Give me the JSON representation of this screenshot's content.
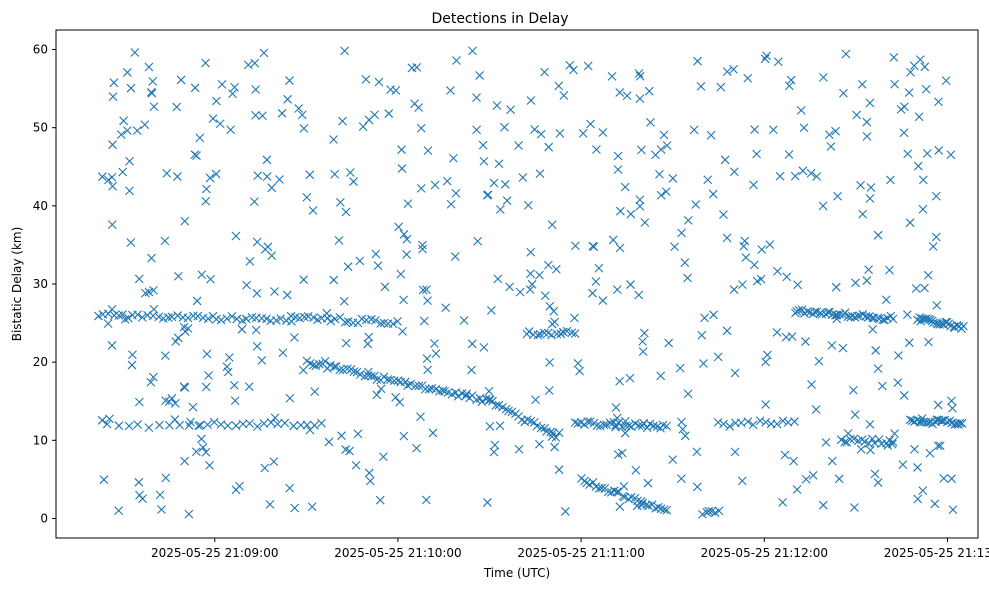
{
  "chart_data": {
    "type": "scatter",
    "title": "Detections in Delay",
    "xlabel": "Time (UTC)",
    "ylabel": "Bistatic Delay (km)",
    "marker": "x",
    "color": "#1f77b4",
    "grid": false,
    "xlim": [
      "2025-05-25 21:08:08",
      "2025-05-25 21:13:10"
    ],
    "ylim": [
      -2.5,
      62.5
    ],
    "x_ticks": [
      "2025-05-25 21:09:00",
      "2025-05-25 21:10:00",
      "2025-05-25 21:11:00",
      "2025-05-25 21:12:00",
      "2025-05-25 21:13:00"
    ],
    "y_ticks": [
      0,
      10,
      20,
      30,
      40,
      50,
      60
    ],
    "tracks": [
      {
        "x_start": "2025-05-25 21:08:22",
        "x_end": "2025-05-25 21:09:25",
        "y_start": 26.0,
        "y_end": 25.5,
        "count": 40
      },
      {
        "x_start": "2025-05-25 21:09:25",
        "x_end": "2025-05-25 21:10:00",
        "y_start": 25.8,
        "y_end": 25.0,
        "count": 25
      },
      {
        "x_start": "2025-05-25 21:09:30",
        "x_end": "2025-05-25 21:10:30",
        "y_start": 20.0,
        "y_end": 15.0,
        "count": 55
      },
      {
        "x_start": "2025-05-25 21:10:30",
        "x_end": "2025-05-25 21:10:52",
        "y_start": 15.0,
        "y_end": 10.5,
        "count": 22
      },
      {
        "x_start": "2025-05-25 21:10:42",
        "x_end": "2025-05-25 21:10:58",
        "y_start": 23.6,
        "y_end": 23.8,
        "count": 14
      },
      {
        "x_start": "2025-05-25 21:08:25",
        "x_end": "2025-05-25 21:08:55",
        "y_start": 11.8,
        "y_end": 12.0,
        "count": 10
      },
      {
        "x_start": "2025-05-25 21:08:55",
        "x_end": "2025-05-25 21:09:35",
        "y_start": 12.2,
        "y_end": 11.9,
        "count": 18
      },
      {
        "x_start": "2025-05-25 21:10:58",
        "x_end": "2025-05-25 21:11:28",
        "y_start": 12.2,
        "y_end": 11.8,
        "count": 30
      },
      {
        "x_start": "2025-05-25 21:11:00",
        "x_end": "2025-05-25 21:11:28",
        "y_start": 5.0,
        "y_end": 0.8,
        "count": 30
      },
      {
        "x_start": "2025-05-25 21:11:40",
        "x_end": "2025-05-25 21:11:45",
        "y_start": 0.8,
        "y_end": 1.0,
        "count": 6
      },
      {
        "x_start": "2025-05-25 21:11:45",
        "x_end": "2025-05-25 21:12:10",
        "y_start": 12.0,
        "y_end": 12.4,
        "count": 14
      },
      {
        "x_start": "2025-05-25 21:12:10",
        "x_end": "2025-05-25 21:12:42",
        "y_start": 26.5,
        "y_end": 25.6,
        "count": 40
      },
      {
        "x_start": "2025-05-25 21:12:25",
        "x_end": "2025-05-25 21:12:42",
        "y_start": 10.0,
        "y_end": 9.8,
        "count": 16
      },
      {
        "x_start": "2025-05-25 21:12:50",
        "x_end": "2025-05-25 21:13:05",
        "y_start": 25.5,
        "y_end": 24.5,
        "count": 25
      },
      {
        "x_start": "2025-05-25 21:12:48",
        "x_end": "2025-05-25 21:13:05",
        "y_start": 12.5,
        "y_end": 12.2,
        "count": 25
      }
    ],
    "clutter_count": 560
  }
}
